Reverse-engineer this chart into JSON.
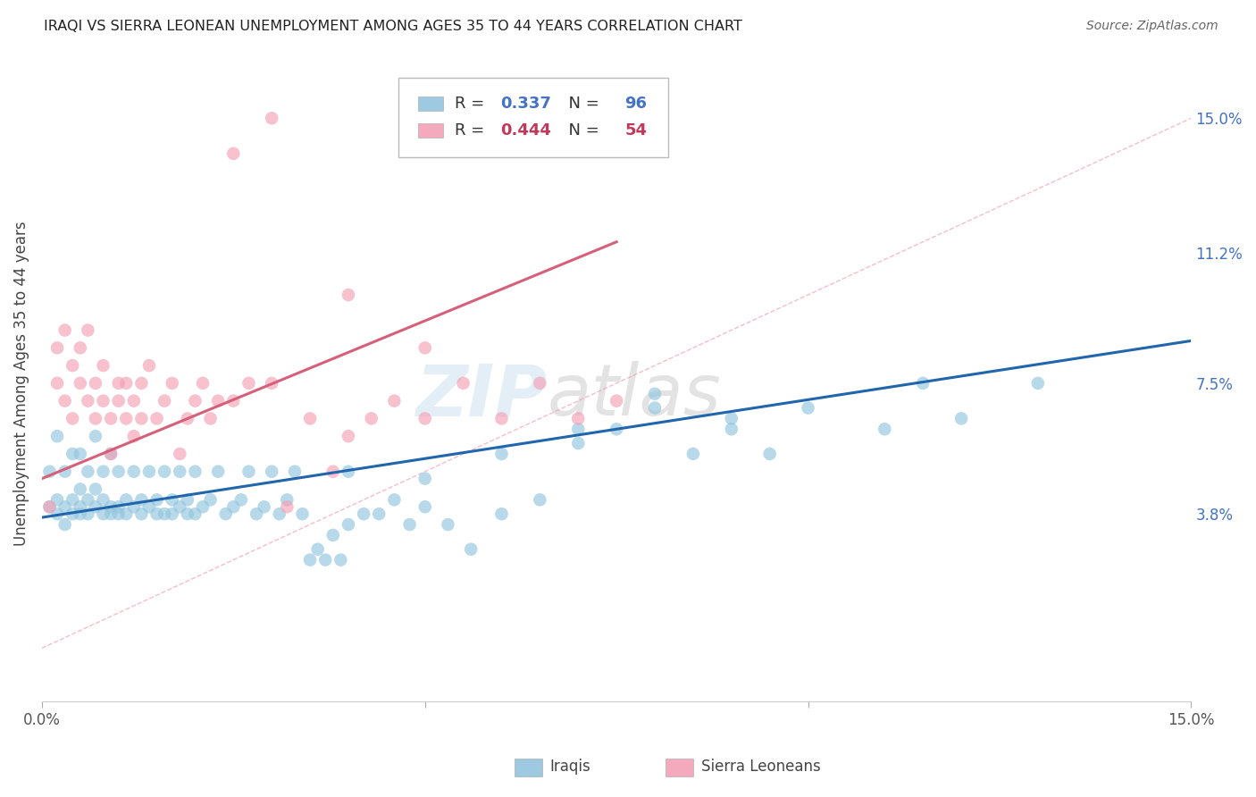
{
  "title": "IRAQI VS SIERRA LEONEAN UNEMPLOYMENT AMONG AGES 35 TO 44 YEARS CORRELATION CHART",
  "source": "Source: ZipAtlas.com",
  "ylabel": "Unemployment Among Ages 35 to 44 years",
  "xmin": 0.0,
  "xmax": 0.15,
  "ymin": -0.015,
  "ymax": 0.165,
  "ytick_positions": [
    0.15,
    0.112,
    0.075,
    0.038
  ],
  "ytick_labels": [
    "15.0%",
    "11.2%",
    "7.5%",
    "3.8%"
  ],
  "xtick_positions": [
    0.0,
    0.05,
    0.1,
    0.15
  ],
  "xtick_labels": [
    "0.0%",
    "",
    "",
    "15.0%"
  ],
  "iraqis_R": 0.337,
  "iraqis_N": 96,
  "sl_R": 0.444,
  "sl_N": 54,
  "iraqis_color": "#92c5de",
  "sl_color": "#f4a0b5",
  "iraqis_line_color": "#2166ac",
  "sl_line_color": "#d6607a",
  "diagonal_color": "#f4a0b5",
  "background_color": "#ffffff",
  "grid_color": "#dddddd",
  "iraqis_x": [
    0.001,
    0.001,
    0.002,
    0.002,
    0.002,
    0.003,
    0.003,
    0.003,
    0.004,
    0.004,
    0.004,
    0.005,
    0.005,
    0.005,
    0.005,
    0.006,
    0.006,
    0.006,
    0.007,
    0.007,
    0.007,
    0.008,
    0.008,
    0.008,
    0.009,
    0.009,
    0.009,
    0.01,
    0.01,
    0.01,
    0.011,
    0.011,
    0.012,
    0.012,
    0.013,
    0.013,
    0.014,
    0.014,
    0.015,
    0.015,
    0.016,
    0.016,
    0.017,
    0.017,
    0.018,
    0.018,
    0.019,
    0.019,
    0.02,
    0.02,
    0.021,
    0.022,
    0.023,
    0.024,
    0.025,
    0.026,
    0.027,
    0.028,
    0.029,
    0.03,
    0.031,
    0.032,
    0.033,
    0.034,
    0.035,
    0.036,
    0.037,
    0.038,
    0.039,
    0.04,
    0.042,
    0.044,
    0.046,
    0.048,
    0.05,
    0.053,
    0.056,
    0.06,
    0.065,
    0.07,
    0.075,
    0.08,
    0.085,
    0.09,
    0.095,
    0.1,
    0.11,
    0.115,
    0.12,
    0.13,
    0.04,
    0.05,
    0.06,
    0.07,
    0.08,
    0.09
  ],
  "iraqis_y": [
    0.04,
    0.05,
    0.038,
    0.042,
    0.06,
    0.035,
    0.04,
    0.05,
    0.038,
    0.042,
    0.055,
    0.04,
    0.038,
    0.045,
    0.055,
    0.038,
    0.042,
    0.05,
    0.04,
    0.045,
    0.06,
    0.038,
    0.042,
    0.05,
    0.038,
    0.04,
    0.055,
    0.038,
    0.04,
    0.05,
    0.038,
    0.042,
    0.04,
    0.05,
    0.038,
    0.042,
    0.04,
    0.05,
    0.038,
    0.042,
    0.038,
    0.05,
    0.038,
    0.042,
    0.04,
    0.05,
    0.038,
    0.042,
    0.038,
    0.05,
    0.04,
    0.042,
    0.05,
    0.038,
    0.04,
    0.042,
    0.05,
    0.038,
    0.04,
    0.05,
    0.038,
    0.042,
    0.05,
    0.038,
    0.025,
    0.028,
    0.025,
    0.032,
    0.025,
    0.035,
    0.038,
    0.038,
    0.042,
    0.035,
    0.04,
    0.035,
    0.028,
    0.038,
    0.042,
    0.058,
    0.062,
    0.068,
    0.055,
    0.062,
    0.055,
    0.068,
    0.062,
    0.075,
    0.065,
    0.075,
    0.05,
    0.048,
    0.055,
    0.062,
    0.072,
    0.065
  ],
  "sl_x": [
    0.001,
    0.002,
    0.002,
    0.003,
    0.003,
    0.004,
    0.004,
    0.005,
    0.005,
    0.006,
    0.006,
    0.007,
    0.007,
    0.008,
    0.008,
    0.009,
    0.009,
    0.01,
    0.01,
    0.011,
    0.011,
    0.012,
    0.012,
    0.013,
    0.013,
    0.014,
    0.015,
    0.016,
    0.017,
    0.018,
    0.019,
    0.02,
    0.021,
    0.022,
    0.023,
    0.025,
    0.027,
    0.03,
    0.032,
    0.035,
    0.038,
    0.04,
    0.043,
    0.046,
    0.05,
    0.055,
    0.06,
    0.065,
    0.07,
    0.075,
    0.025,
    0.03,
    0.04,
    0.05
  ],
  "sl_y": [
    0.04,
    0.075,
    0.085,
    0.07,
    0.09,
    0.065,
    0.08,
    0.075,
    0.085,
    0.07,
    0.09,
    0.065,
    0.075,
    0.08,
    0.07,
    0.055,
    0.065,
    0.07,
    0.075,
    0.065,
    0.075,
    0.06,
    0.07,
    0.065,
    0.075,
    0.08,
    0.065,
    0.07,
    0.075,
    0.055,
    0.065,
    0.07,
    0.075,
    0.065,
    0.07,
    0.07,
    0.075,
    0.075,
    0.04,
    0.065,
    0.05,
    0.06,
    0.065,
    0.07,
    0.065,
    0.075,
    0.065,
    0.075,
    0.065,
    0.07,
    0.14,
    0.15,
    0.1,
    0.085
  ]
}
